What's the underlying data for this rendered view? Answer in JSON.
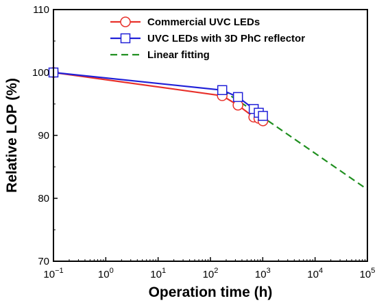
{
  "chart_data": {
    "type": "line",
    "xlabel": "Operation time (h)",
    "ylabel": "Relative LOP (%)",
    "xscale": "log",
    "xlim": [
      0.1,
      100000
    ],
    "ylim": [
      70,
      110
    ],
    "x_ticks": [
      {
        "value": 0.1,
        "base": "10",
        "exp": "−1"
      },
      {
        "value": 1,
        "base": "10",
        "exp": "0"
      },
      {
        "value": 10,
        "base": "10",
        "exp": "1"
      },
      {
        "value": 100,
        "base": "10",
        "exp": "2"
      },
      {
        "value": 1000,
        "base": "10",
        "exp": "3"
      },
      {
        "value": 10000,
        "base": "10",
        "exp": "4"
      },
      {
        "value": 100000,
        "base": "10",
        "exp": "5"
      }
    ],
    "y_ticks": [
      70,
      80,
      90,
      100,
      110
    ],
    "legend_position": "top-center",
    "series": [
      {
        "name": "Commercial UVC LEDs",
        "color": "#e8302a",
        "marker": "circle",
        "line": "solid",
        "x": [
          0.1,
          168,
          336,
          672,
          840,
          1008
        ],
        "y": [
          100,
          96.3,
          94.8,
          92.9,
          92.7,
          92.3
        ]
      },
      {
        "name": "UVC LEDs with 3D PhC reflector",
        "color": "#2020d8",
        "marker": "square",
        "line": "solid",
        "x": [
          0.1,
          168,
          336,
          672,
          840,
          1008
        ],
        "y": [
          100,
          97.2,
          96.1,
          94.2,
          93.6,
          93.1
        ]
      },
      {
        "name": "Linear fitting",
        "color": "#1f8f1f",
        "marker": "none",
        "line": "dashed",
        "x": [
          168,
          1000,
          100000
        ],
        "y": [
          97.2,
          92.9,
          81.4
        ]
      }
    ]
  }
}
